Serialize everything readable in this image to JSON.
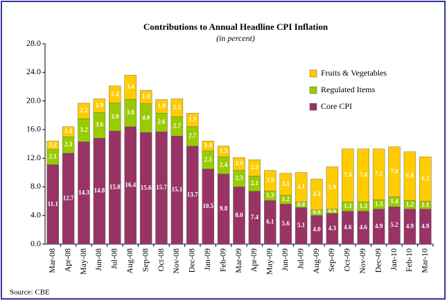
{
  "chart_data": {
    "type": "stacked_bar",
    "title": "Contributions to Annual Headline CPI Inflation",
    "subtitle": "(in percent)",
    "source": "Source: CBE",
    "categories": [
      "Mar-08",
      "Apr-08",
      "May-08",
      "Jun-08",
      "Jul-08",
      "Aug-08",
      "Sep-08",
      "Oct-08",
      "Nov-08",
      "Dec-08",
      "Jan-09",
      "Feb-09",
      "Mar-09",
      "Apr-09",
      "May-09",
      "Jun-09",
      "Jul-09",
      "Aug-09",
      "Sep-09",
      "Oct-09",
      "Nov-09",
      "Dec-09",
      "Jan-10",
      "Feb-10",
      "Mar-10"
    ],
    "series": [
      {
        "name": "Core CPI",
        "color": "#993366",
        "values": [
          11.1,
          12.7,
          14.3,
          14.8,
          15.8,
          16.4,
          15.6,
          15.7,
          15.1,
          13.7,
          10.5,
          9.8,
          8.0,
          7.4,
          6.1,
          5.6,
          5.1,
          4.0,
          4.3,
          4.6,
          4.6,
          4.9,
          5.2,
          4.9,
          4.9
        ],
        "value_labels": [
          "11.1",
          "12.7",
          "14.3",
          "14.8",
          "15.8",
          "16.4",
          "15.6",
          "15.7",
          "15.1",
          "13.7",
          "10.5",
          "9.8",
          "8.0",
          "7.4",
          "6.1",
          "5.6",
          "5.1",
          "4.0",
          "4.3",
          "4.6",
          "4.6",
          "4.9",
          "5.2",
          "4.9",
          "4.9"
        ]
      },
      {
        "name": "Regulated Items",
        "color": "#99cc00",
        "values": [
          2.1,
          2.3,
          3.2,
          3.6,
          3.9,
          3.8,
          4.0,
          2.6,
          2.7,
          2.7,
          2.5,
          2.4,
          2.3,
          2.1,
          1.3,
          1.2,
          0.8,
          0.8,
          0.6,
          1.3,
          1.3,
          1.3,
          1.4,
          1.2,
          1.1
        ],
        "value_labels": [
          "2.1",
          "2.3",
          "3.2",
          "3.6",
          "3.9",
          "3.8",
          "4.0",
          "2.6",
          "2.7",
          "2.7",
          "2.5",
          "2.4",
          "2.3",
          "2.1",
          "1.3",
          "1.2",
          "0.8",
          "0.8",
          "0.6",
          "1.3",
          "1.3",
          "1.3",
          "1.4",
          "1.2",
          "1.1"
        ]
      },
      {
        "name": "Fruits & Vegetables",
        "color": "#ffcc00",
        "values": [
          1.2,
          1.4,
          2.2,
          1.9,
          2.4,
          3.4,
          1.9,
          1.9,
          2.5,
          1.9,
          1.4,
          1.5,
          1.8,
          2.3,
          2.9,
          3.1,
          4.1,
          4.3,
          5.9,
          7.4,
          7.4,
          7.1,
          7.0,
          6.8,
          6.2
        ],
        "value_labels": [
          "1.2",
          "1.4",
          "2.2",
          "1.9",
          "2.4",
          "3.4",
          "1.9",
          "1.9",
          "2.5",
          "1.9",
          "1.4",
          "1.5",
          "1.8",
          "2.3",
          "2.9",
          "3.1",
          "4.1",
          "4.3",
          "5.9",
          "7.4",
          "7.4",
          "7.1",
          "7.0",
          "6.8",
          "6.2"
        ]
      }
    ],
    "ylim": [
      0,
      28
    ],
    "yticks": [
      {
        "value": 0,
        "label": "0.0"
      },
      {
        "value": 4,
        "label": "4.0"
      },
      {
        "value": 8,
        "label": "8.0"
      },
      {
        "value": 12,
        "label": "12.0"
      },
      {
        "value": 16,
        "label": "16.0"
      },
      {
        "value": 20,
        "label": "20.0"
      },
      {
        "value": 24,
        "label": "24.0"
      },
      {
        "value": 28,
        "label": "28.0"
      }
    ],
    "grid": false,
    "legend": "upper right"
  }
}
